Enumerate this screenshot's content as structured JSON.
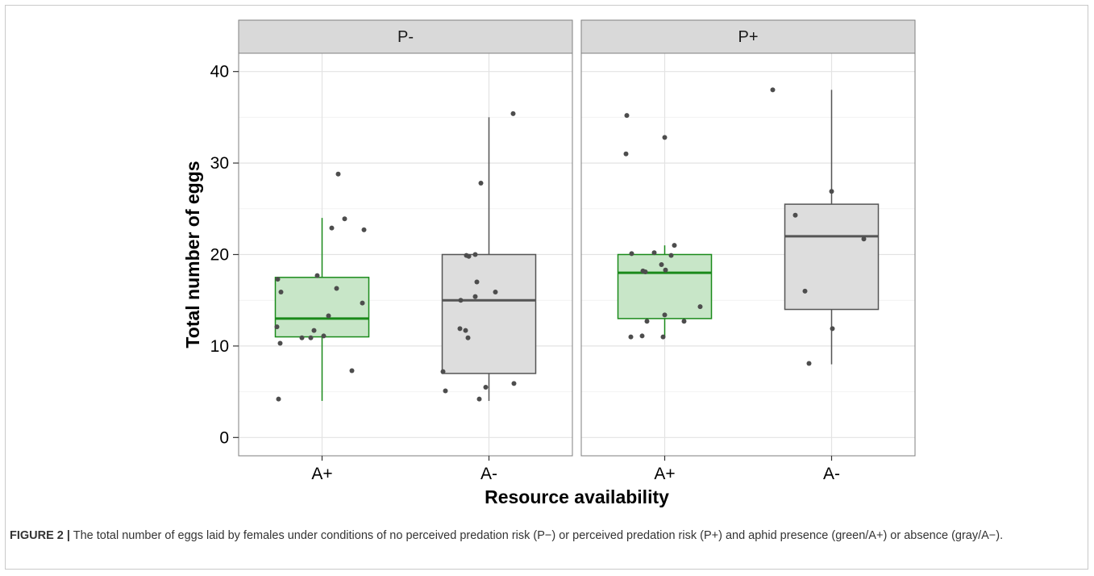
{
  "chart_data": {
    "type": "boxplot",
    "title": "",
    "xlabel": "Resource availability",
    "ylabel": "Total number of eggs",
    "ylim": [
      -2,
      42
    ],
    "y_ticks": [
      0,
      10,
      20,
      30,
      40
    ],
    "grid": true,
    "facets": [
      {
        "label": "P-",
        "categories": [
          "A+",
          "A-"
        ],
        "boxes": [
          {
            "category": "A+",
            "color": "#1a8a1a",
            "fill": "#c8e6c8",
            "min": 4,
            "q1": 11,
            "median": 13,
            "q3": 17.5,
            "max": 24,
            "points": [
              4.2,
              12.1,
              17.3,
              10.3,
              15.9,
              10.9,
              10.9,
              11.7,
              17.7,
              11.1,
              13.3,
              22.9,
              16.3,
              28.8,
              23.9,
              7.3,
              14.7,
              22.7
            ]
          },
          {
            "category": "A-",
            "color": "#555555",
            "fill": "#dddddd",
            "min": 4,
            "q1": 7,
            "median": 15,
            "q3": 20,
            "max": 35,
            "points": [
              7.2,
              5.1,
              11.9,
              15.0,
              11.7,
              10.9,
              19.9,
              19.8,
              20.0,
              27.8,
              17.0,
              15.4,
              4.2,
              5.5,
              15.9,
              35.4,
              5.9
            ]
          }
        ]
      },
      {
        "label": "P+",
        "categories": [
          "A+",
          "A-"
        ],
        "boxes": [
          {
            "category": "A+",
            "color": "#1a8a1a",
            "fill": "#c8e6c8",
            "min": 11,
            "q1": 13,
            "median": 18,
            "q3": 20,
            "max": 21,
            "points": [
              35.2,
              31.0,
              11.0,
              20.1,
              11.1,
              18.2,
              18.1,
              12.7,
              20.2,
              18.9,
              11.0,
              32.8,
              13.4,
              18.3,
              19.9,
              21.0,
              12.7,
              14.3
            ]
          },
          {
            "category": "A-",
            "color": "#555555",
            "fill": "#dddddd",
            "min": 8,
            "q1": 14,
            "median": 22,
            "q3": 25.5,
            "max": 38,
            "points": [
              38.0,
              24.3,
              16.0,
              8.1,
              11.9,
              26.9,
              21.7
            ]
          }
        ]
      }
    ]
  },
  "caption": {
    "label": "FIGURE 2 |",
    "text": "The total number of eggs laid by females under conditions of no perceived predation risk (P−) or perceived predation risk (P+) and aphid presence (green/A+) or absence (gray/A−)."
  }
}
